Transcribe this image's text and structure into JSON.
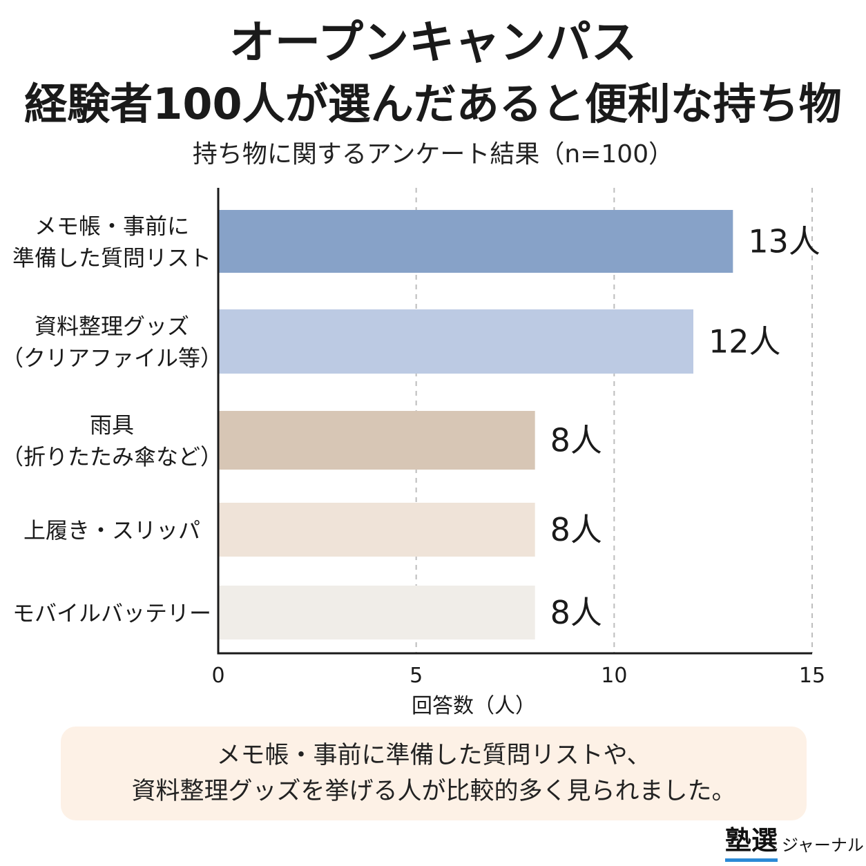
{
  "title_line1": "オープンキャンパス",
  "title_line2": "経験者100人が選んだあると便利な持ち物",
  "subtitle": "持ち物に関するアンケート結果（n=100）",
  "chart_data": {
    "type": "bar",
    "orientation": "horizontal",
    "categories": [
      [
        "メモ帳・事前に",
        "準備した質問リスト"
      ],
      [
        "資料整理グッズ",
        "（クリアファイル等）"
      ],
      [
        "雨具",
        "（折りたたみ傘など）"
      ],
      [
        "上履き・スリッパ"
      ],
      [
        "モバイルバッテリー"
      ]
    ],
    "values": [
      13,
      12,
      8,
      8,
      8
    ],
    "value_labels": [
      "13人",
      "12人",
      "8人",
      "8人",
      "8人"
    ],
    "colors": [
      "#87a2c8",
      "#bccae3",
      "#d7c6b5",
      "#efe3d8",
      "#f0ede8"
    ],
    "xlim": [
      0,
      15
    ],
    "xticks": [
      0,
      5,
      10,
      15
    ],
    "xlabel": "回答数（人）",
    "grid": "vertical-dashed"
  },
  "note": {
    "line1": "メモ帳・事前に準備した質問リストや、",
    "line2": "資料整理グッズを挙げる人が比較的多く見られました。"
  },
  "logo": {
    "main": "塾選",
    "sub": "ジャーナル"
  }
}
